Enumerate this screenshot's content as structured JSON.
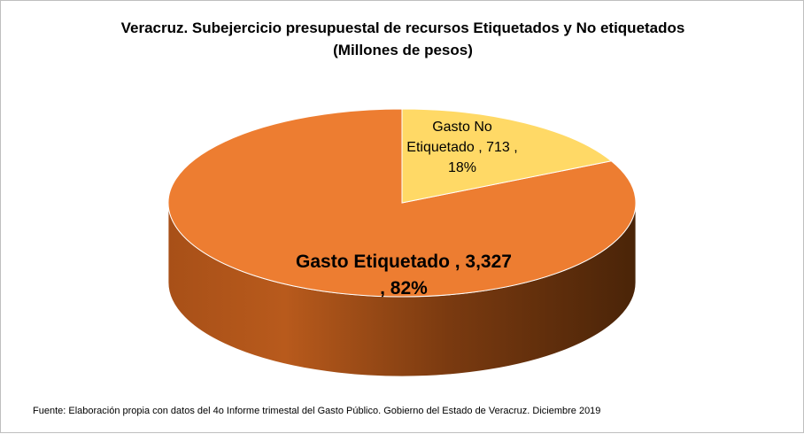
{
  "chart_data": {
    "type": "pie",
    "title": "Veracruz. Subejercicio presupuestal de recursos Etiquetados y No etiquetados",
    "subtitle": "(Millones de pesos)",
    "slices": [
      {
        "name": "Gasto Etiquetado",
        "value": 3327,
        "percent": 82,
        "color": "#ED7D31",
        "label_lines": [
          "Gasto Etiquetado , 3,327",
          ", 82%"
        ]
      },
      {
        "name": "Gasto No Etiquetado",
        "value": 713,
        "percent": 18,
        "color": "#FFD966",
        "label_lines": [
          "Gasto No",
          "Etiquetado , 713 ,",
          "18%"
        ]
      }
    ],
    "style": "3d"
  },
  "source": "Fuente: Elaboración propia con datos del 4o Informe trimestal del Gasto Público. Gobierno del Estado de Veracruz. Diciembre 2019"
}
